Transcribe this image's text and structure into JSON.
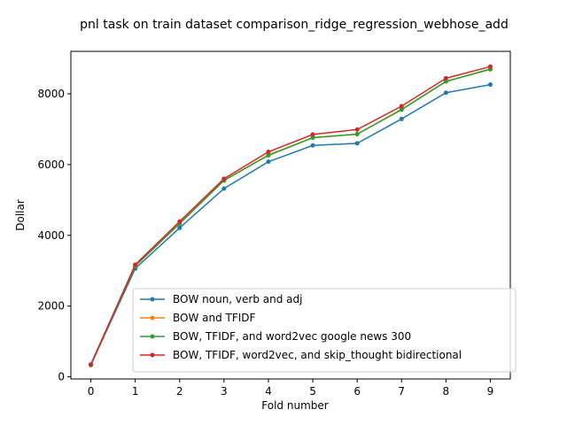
{
  "chart_data": {
    "type": "line",
    "title": "pnl task on train dataset comparison_ridge_regression_webhose_add",
    "xlabel": "Fold number",
    "ylabel": "Dollar",
    "x": [
      0,
      1,
      2,
      3,
      4,
      5,
      6,
      7,
      8,
      9
    ],
    "xlim": [
      -0.45,
      9.45
    ],
    "ylim": [
      -60,
      9200
    ],
    "xticks": [
      0,
      1,
      2,
      3,
      4,
      5,
      6,
      7,
      8,
      9
    ],
    "yticks": [
      0,
      2000,
      4000,
      6000,
      8000
    ],
    "grid": false,
    "legend_position": "lower-right",
    "series": [
      {
        "name": "BOW noun, verb and adj",
        "color": "#1f77b4",
        "values": [
          330,
          3060,
          4210,
          5320,
          6080,
          6540,
          6600,
          7290,
          8030,
          8260
        ]
      },
      {
        "name": "BOW and TFIDF",
        "color": "#ff7f0e",
        "values": [
          340,
          3130,
          4330,
          5550,
          6270,
          6760,
          6860,
          7560,
          8350,
          8690
        ]
      },
      {
        "name": "BOW, TFIDF, and word2vec google news 300",
        "color": "#2ca02c",
        "values": [
          340,
          3130,
          4330,
          5550,
          6260,
          6760,
          6860,
          7550,
          8350,
          8700
        ]
      },
      {
        "name": "BOW, TFIDF, word2vec, and skip_thought bidirectional",
        "color": "#d62728",
        "values": [
          350,
          3170,
          4390,
          5600,
          6360,
          6850,
          6990,
          7650,
          8440,
          8770
        ]
      }
    ]
  }
}
